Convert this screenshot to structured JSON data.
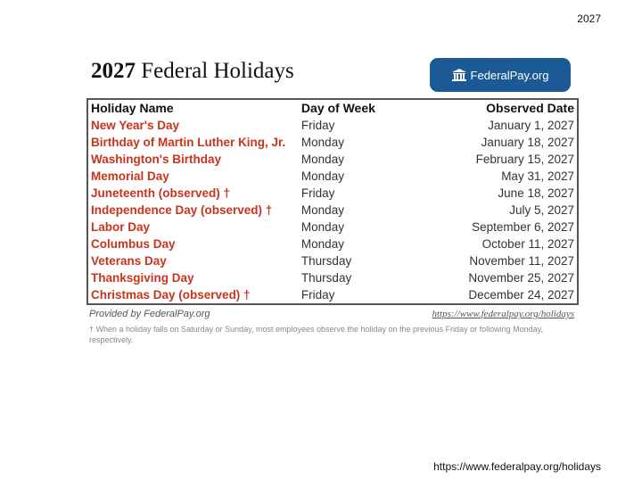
{
  "page_year": "2027",
  "title": {
    "year": "2027",
    "text": "Federal Holidays"
  },
  "logo": {
    "text": "FederalPay.org",
    "icon": "bank-building-icon",
    "color": "#1b5a96"
  },
  "table": {
    "headers": [
      "Holiday Name",
      "Day of Week",
      "Observed Date"
    ],
    "rows": [
      {
        "name": "New Year's Day",
        "day": "Friday",
        "date": "January 1, 2027"
      },
      {
        "name": "Birthday of Martin Luther King, Jr.",
        "day": "Monday",
        "date": "January 18, 2027"
      },
      {
        "name": "Washington's Birthday",
        "day": "Monday",
        "date": "February 15, 2027"
      },
      {
        "name": "Memorial Day",
        "day": "Monday",
        "date": "May 31, 2027"
      },
      {
        "name": "Juneteenth (observed) †",
        "day": "Friday",
        "date": "June 18, 2027"
      },
      {
        "name": "Independence Day (observed) †",
        "day": "Monday",
        "date": "July 5, 2027"
      },
      {
        "name": "Labor Day",
        "day": "Monday",
        "date": "September 6, 2027"
      },
      {
        "name": "Columbus Day",
        "day": "Monday",
        "date": "October 11, 2027"
      },
      {
        "name": "Veterans Day",
        "day": "Thursday",
        "date": "November 11, 2027"
      },
      {
        "name": "Thanksgiving Day",
        "day": "Thursday",
        "date": "November 25, 2027"
      },
      {
        "name": "Christmas Day (observed) †",
        "day": "Friday",
        "date": "December 24, 2027"
      }
    ],
    "name_color": "#c8341c"
  },
  "provided_by": "Provided by FederalPay.org",
  "source_link": "https://www.federalpay.org/holidays",
  "footnote": "† When a holiday falls on Saturday or Sunday, most employees observe the holiday on the previous Friday or following Monday, respectively.",
  "footer_url": "https://www.federalpay.org/holidays"
}
